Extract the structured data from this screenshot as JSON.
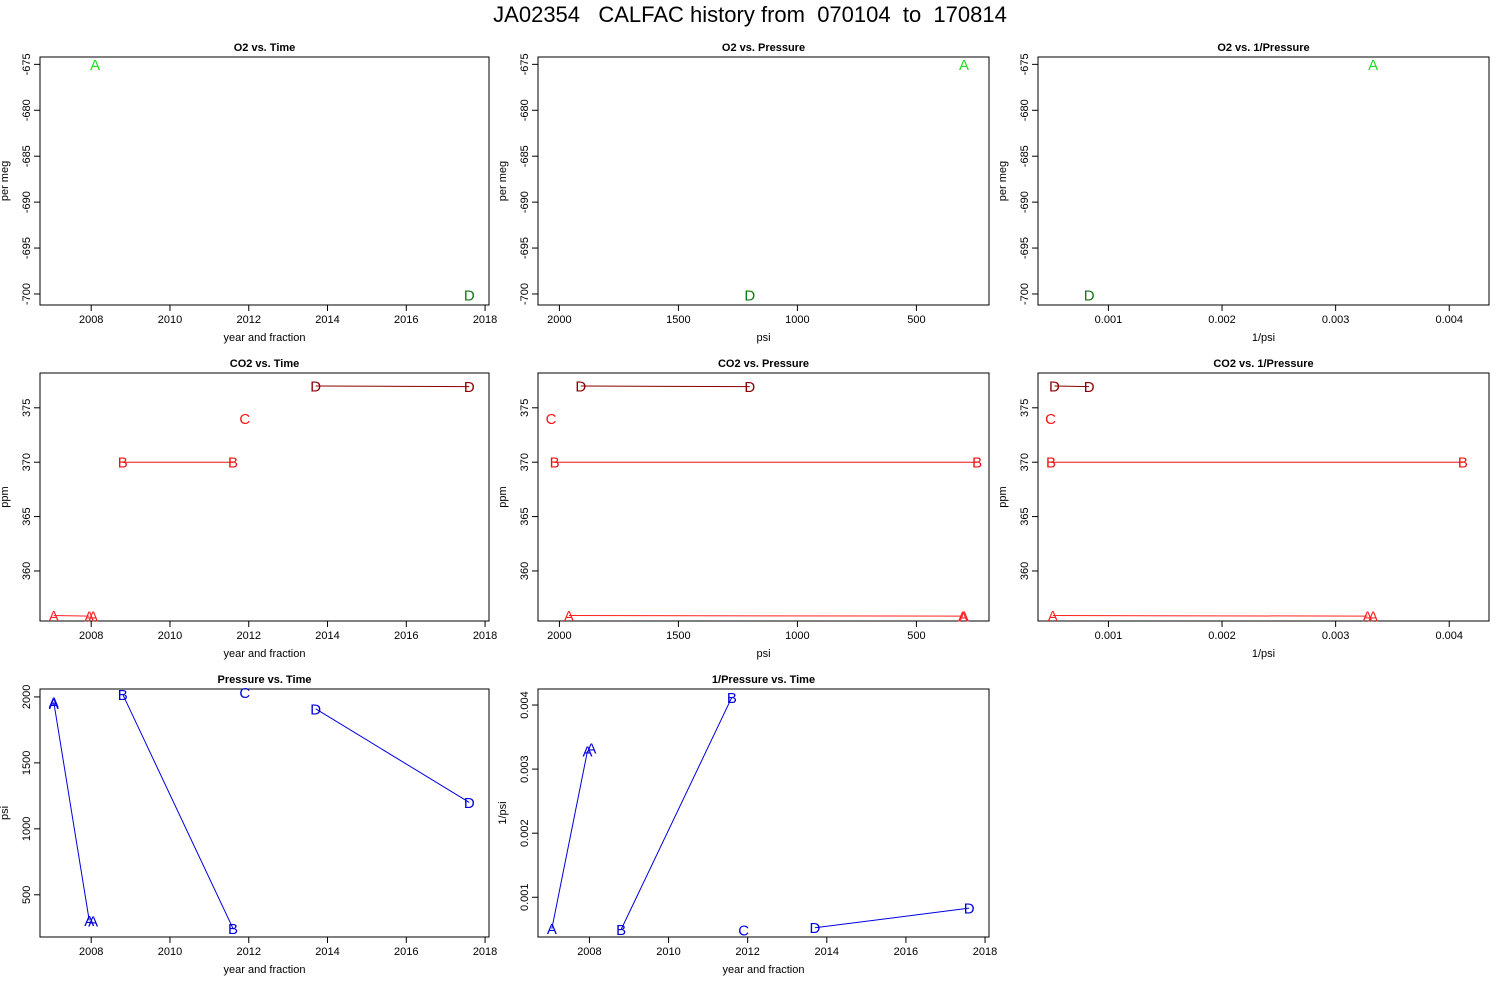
{
  "title": "JA02354   CALFAC history from  070104  to  170814",
  "colors": {
    "A": "#22dd22",
    "D": "#117711",
    "co2_A": "#ff2222",
    "co2_B": "#ee1111",
    "co2_C": "#ff1111",
    "co2_D": "#8b0000",
    "blue": "#0000dd"
  },
  "chart_data": [
    {
      "type": "scatter",
      "title": "O2 vs. Time",
      "xlabel": "year and fraction",
      "ylabel": "per meg",
      "xlim": [
        2006.7,
        2018.1
      ],
      "ylim": [
        -701.2,
        -674.2
      ],
      "xticks": [
        2008,
        2010,
        2012,
        2014,
        2016,
        2018
      ],
      "xtick_labels": [
        "2008",
        "2010",
        "2012",
        "2014",
        "2016",
        "2018"
      ],
      "yticks": [
        -675,
        -680,
        -685,
        -690,
        -695,
        -700
      ],
      "ytick_labels": [
        "-675",
        "-680",
        "-685",
        "-690",
        "-695",
        "-700"
      ],
      "points": [
        {
          "label": "A",
          "x": 2008.1,
          "y": -675.0,
          "color": "#22dd22"
        },
        {
          "label": "D",
          "x": 2017.6,
          "y": -700.1,
          "color": "#117711"
        }
      ],
      "lines": []
    },
    {
      "type": "scatter",
      "title": "O2 vs. Pressure",
      "xlabel": "psi",
      "ylabel": "per meg",
      "xlim": [
        2090,
        195
      ],
      "ylim": [
        -701.2,
        -674.2
      ],
      "xticks": [
        2000,
        1500,
        1000,
        500
      ],
      "xtick_labels": [
        "2000",
        "1500",
        "1000",
        "500"
      ],
      "yticks": [
        -675,
        -680,
        -685,
        -690,
        -695,
        -700
      ],
      "ytick_labels": [
        "-675",
        "-680",
        "-685",
        "-690",
        "-695",
        "-700"
      ],
      "points": [
        {
          "label": "A",
          "x": 300,
          "y": -675.0,
          "color": "#22dd22"
        },
        {
          "label": "D",
          "x": 1200,
          "y": -700.1,
          "color": "#117711"
        }
      ],
      "lines": []
    },
    {
      "type": "scatter",
      "title": "O2 vs. 1/Pressure",
      "xlabel": "1/psi",
      "ylabel": "per meg",
      "xlim": [
        0.00038,
        0.00435
      ],
      "ylim": [
        -701.2,
        -674.2
      ],
      "xticks": [
        0.001,
        0.002,
        0.003,
        0.004
      ],
      "xtick_labels": [
        "0.001",
        "0.002",
        "0.003",
        "0.004"
      ],
      "yticks": [
        -675,
        -680,
        -685,
        -690,
        -695,
        -700
      ],
      "ytick_labels": [
        "-675",
        "-680",
        "-685",
        "-690",
        "-695",
        "-700"
      ],
      "points": [
        {
          "label": "A",
          "x": 0.00333,
          "y": -675.0,
          "color": "#22dd22"
        },
        {
          "label": "D",
          "x": 0.00083,
          "y": -700.1,
          "color": "#117711"
        }
      ],
      "lines": []
    },
    {
      "type": "line",
      "title": "CO2 vs. Time",
      "xlabel": "year and fraction",
      "ylabel": "ppm",
      "xlim": [
        2006.7,
        2018.1
      ],
      "ylim": [
        355.4,
        378.2
      ],
      "xticks": [
        2008,
        2010,
        2012,
        2014,
        2016,
        2018
      ],
      "xtick_labels": [
        "2008",
        "2010",
        "2012",
        "2014",
        "2016",
        "2018"
      ],
      "yticks": [
        360,
        365,
        370,
        375
      ],
      "ytick_labels": [
        "360",
        "365",
        "370",
        "375"
      ],
      "points": [
        {
          "label": "A",
          "x": 2007.05,
          "y": 355.9,
          "color": "#ff2222"
        },
        {
          "label": "A",
          "x": 2007.95,
          "y": 355.85,
          "color": "#ff2222"
        },
        {
          "label": "A",
          "x": 2008.05,
          "y": 355.85,
          "color": "#ff2222"
        },
        {
          "label": "B",
          "x": 2008.8,
          "y": 370.0,
          "color": "#ee1111"
        },
        {
          "label": "B",
          "x": 2011.6,
          "y": 370.0,
          "color": "#ee1111"
        },
        {
          "label": "C",
          "x": 2011.9,
          "y": 374.0,
          "color": "#ff1111"
        },
        {
          "label": "D",
          "x": 2013.7,
          "y": 377.0,
          "color": "#8b0000"
        },
        {
          "label": "D",
          "x": 2017.6,
          "y": 376.95,
          "color": "#8b0000"
        }
      ],
      "lines": [
        {
          "x": [
            2007.05,
            2007.95
          ],
          "y": [
            355.9,
            355.85
          ],
          "color": "#ff2222"
        },
        {
          "x": [
            2008.8,
            2011.6
          ],
          "y": [
            370.0,
            370.0
          ],
          "color": "#ee1111"
        },
        {
          "x": [
            2013.7,
            2017.6
          ],
          "y": [
            377.0,
            376.95
          ],
          "color": "#8b0000"
        }
      ]
    },
    {
      "type": "line",
      "title": "CO2 vs. Pressure",
      "xlabel": "psi",
      "ylabel": "ppm",
      "xlim": [
        2090,
        195
      ],
      "ylim": [
        355.4,
        378.2
      ],
      "xticks": [
        2000,
        1500,
        1000,
        500
      ],
      "xtick_labels": [
        "2000",
        "1500",
        "1000",
        "500"
      ],
      "yticks": [
        360,
        365,
        370,
        375
      ],
      "ytick_labels": [
        "360",
        "365",
        "370",
        "375"
      ],
      "points": [
        {
          "label": "A",
          "x": 1960,
          "y": 355.9,
          "color": "#ff2222"
        },
        {
          "label": "A",
          "x": 305,
          "y": 355.85,
          "color": "#ff2222"
        },
        {
          "label": "A",
          "x": 300,
          "y": 355.85,
          "color": "#ff2222"
        },
        {
          "label": "B",
          "x": 2020,
          "y": 370.0,
          "color": "#ee1111"
        },
        {
          "label": "B",
          "x": 245,
          "y": 370.0,
          "color": "#ee1111"
        },
        {
          "label": "C",
          "x": 2035,
          "y": 374.0,
          "color": "#ff1111"
        },
        {
          "label": "D",
          "x": 1910,
          "y": 377.0,
          "color": "#8b0000"
        },
        {
          "label": "D",
          "x": 1200,
          "y": 376.95,
          "color": "#8b0000"
        }
      ],
      "lines": [
        {
          "x": [
            1960,
            305
          ],
          "y": [
            355.9,
            355.85
          ],
          "color": "#ff2222"
        },
        {
          "x": [
            2020,
            245
          ],
          "y": [
            370.0,
            370.0
          ],
          "color": "#ee1111"
        },
        {
          "x": [
            1910,
            1200
          ],
          "y": [
            377.0,
            376.95
          ],
          "color": "#8b0000"
        }
      ]
    },
    {
      "type": "line",
      "title": "CO2 vs. 1/Pressure",
      "xlabel": "1/psi",
      "ylabel": "ppm",
      "xlim": [
        0.00038,
        0.00435
      ],
      "ylim": [
        355.4,
        378.2
      ],
      "xticks": [
        0.001,
        0.002,
        0.003,
        0.004
      ],
      "xtick_labels": [
        "0.001",
        "0.002",
        "0.003",
        "0.004"
      ],
      "yticks": [
        360,
        365,
        370,
        375
      ],
      "ytick_labels": [
        "360",
        "365",
        "370",
        "375"
      ],
      "points": [
        {
          "label": "A",
          "x": 0.00051,
          "y": 355.9,
          "color": "#ff2222"
        },
        {
          "label": "A",
          "x": 0.00328,
          "y": 355.85,
          "color": "#ff2222"
        },
        {
          "label": "A",
          "x": 0.00333,
          "y": 355.85,
          "color": "#ff2222"
        },
        {
          "label": "B",
          "x": 0.000495,
          "y": 370.0,
          "color": "#ee1111"
        },
        {
          "label": "B",
          "x": 0.00412,
          "y": 370.0,
          "color": "#ee1111"
        },
        {
          "label": "C",
          "x": 0.00049,
          "y": 374.0,
          "color": "#ff1111"
        },
        {
          "label": "D",
          "x": 0.000525,
          "y": 377.0,
          "color": "#8b0000"
        },
        {
          "label": "D",
          "x": 0.00083,
          "y": 376.95,
          "color": "#8b0000"
        }
      ],
      "lines": [
        {
          "x": [
            0.00051,
            0.00328
          ],
          "y": [
            355.9,
            355.85
          ],
          "color": "#ff2222"
        },
        {
          "x": [
            0.000495,
            0.00412
          ],
          "y": [
            370.0,
            370.0
          ],
          "color": "#ee1111"
        },
        {
          "x": [
            0.000525,
            0.00083
          ],
          "y": [
            377.0,
            376.95
          ],
          "color": "#8b0000"
        }
      ]
    },
    {
      "type": "line",
      "title": "Pressure vs. Time",
      "xlabel": "year and fraction",
      "ylabel": "psi",
      "xlim": [
        2006.7,
        2018.1
      ],
      "ylim": [
        180,
        2060
      ],
      "xticks": [
        2008,
        2010,
        2012,
        2014,
        2016,
        2018
      ],
      "xtick_labels": [
        "2008",
        "2010",
        "2012",
        "2014",
        "2016",
        "2018"
      ],
      "yticks": [
        500,
        1000,
        1500,
        2000
      ],
      "ytick_labels": [
        "500",
        "1000",
        "1500",
        "2000"
      ],
      "points": [
        {
          "label": "A",
          "x": 2007.05,
          "y": 1950,
          "color": "#0000dd"
        },
        {
          "label": "A",
          "x": 2007.05,
          "y": 1960,
          "color": "#0000dd"
        },
        {
          "label": "A",
          "x": 2007.95,
          "y": 305,
          "color": "#0000dd"
        },
        {
          "label": "A",
          "x": 2008.05,
          "y": 300,
          "color": "#0000dd"
        },
        {
          "label": "B",
          "x": 2008.8,
          "y": 2020,
          "color": "#0000dd"
        },
        {
          "label": "B",
          "x": 2011.6,
          "y": 245,
          "color": "#0000dd"
        },
        {
          "label": "C",
          "x": 2011.9,
          "y": 2035,
          "color": "#0000dd"
        },
        {
          "label": "D",
          "x": 2013.7,
          "y": 1910,
          "color": "#0000dd"
        },
        {
          "label": "D",
          "x": 2017.6,
          "y": 1200,
          "color": "#0000dd"
        }
      ],
      "lines": [
        {
          "x": [
            2007.05,
            2007.95
          ],
          "y": [
            1960,
            305
          ],
          "color": "#0000dd"
        },
        {
          "x": [
            2008.8,
            2011.6
          ],
          "y": [
            2020,
            245
          ],
          "color": "#0000dd"
        },
        {
          "x": [
            2013.7,
            2017.6
          ],
          "y": [
            1910,
            1200
          ],
          "color": "#0000dd"
        }
      ]
    },
    {
      "type": "line",
      "title": "1/Pressure vs. Time",
      "xlabel": "year and fraction",
      "ylabel": "1/psi",
      "xlim": [
        2006.7,
        2018.1
      ],
      "ylim": [
        0.00038,
        0.00425
      ],
      "xticks": [
        2008,
        2010,
        2012,
        2014,
        2016,
        2018
      ],
      "xtick_labels": [
        "2008",
        "2010",
        "2012",
        "2014",
        "2016",
        "2018"
      ],
      "yticks": [
        0.001,
        0.002,
        0.003,
        0.004
      ],
      "ytick_labels": [
        "0.001",
        "0.002",
        "0.003",
        "0.004"
      ],
      "points": [
        {
          "label": "A",
          "x": 2007.05,
          "y": 0.00051,
          "color": "#0000dd"
        },
        {
          "label": "A",
          "x": 2007.95,
          "y": 0.00328,
          "color": "#0000dd"
        },
        {
          "label": "A",
          "x": 2008.05,
          "y": 0.00333,
          "color": "#0000dd"
        },
        {
          "label": "B",
          "x": 2008.8,
          "y": 0.000495,
          "color": "#0000dd"
        },
        {
          "label": "B",
          "x": 2011.6,
          "y": 0.00412,
          "color": "#0000dd"
        },
        {
          "label": "C",
          "x": 2011.9,
          "y": 0.00049,
          "color": "#0000dd"
        },
        {
          "label": "D",
          "x": 2013.7,
          "y": 0.000525,
          "color": "#0000dd"
        },
        {
          "label": "D",
          "x": 2017.6,
          "y": 0.00083,
          "color": "#0000dd"
        }
      ],
      "lines": [
        {
          "x": [
            2007.05,
            2007.95
          ],
          "y": [
            0.00051,
            0.00328
          ],
          "color": "#0000dd"
        },
        {
          "x": [
            2008.8,
            2011.6
          ],
          "y": [
            0.000495,
            0.00412
          ],
          "color": "#0000dd"
        },
        {
          "x": [
            2013.7,
            2017.6
          ],
          "y": [
            0.000525,
            0.00083
          ],
          "color": "#0000dd"
        }
      ]
    }
  ]
}
